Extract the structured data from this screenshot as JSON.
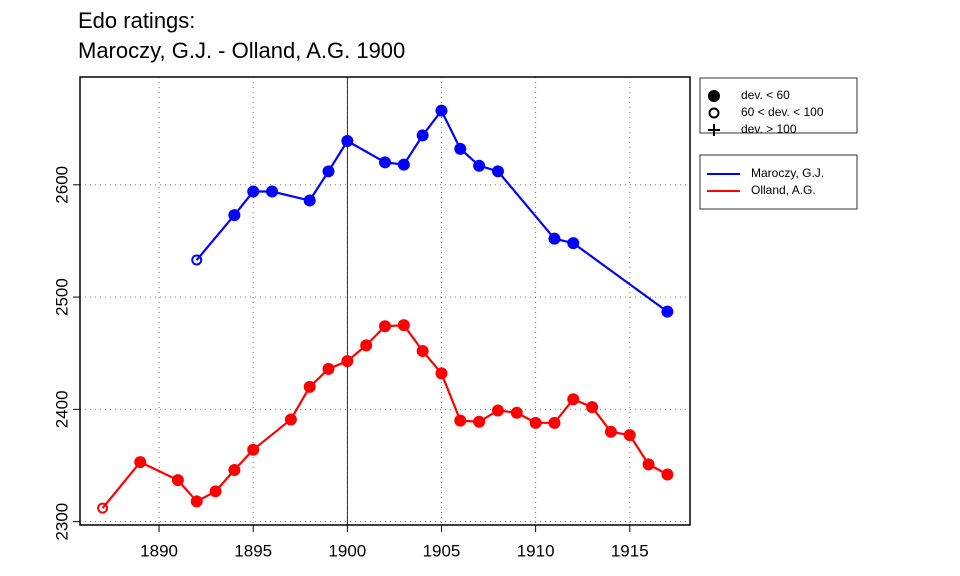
{
  "chart_data": {
    "type": "line",
    "title": "Edo ratings:",
    "subtitle": "Maroczy, G.J. - Olland, A.G. 1900",
    "xlim": [
      1885.8,
      1918.2
    ],
    "ylim": [
      2297,
      2696
    ],
    "xticks": [
      1890,
      1895,
      1900,
      1905,
      1910,
      1915
    ],
    "yticks": [
      2300,
      2400,
      2500,
      2600
    ],
    "grid": true,
    "vline": 1900,
    "point_legend": [
      {
        "label": "dev. < 60",
        "symbol": "filled"
      },
      {
        "label": "60 < dev. < 100",
        "symbol": "open"
      },
      {
        "label": "dev. > 100",
        "symbol": "plus"
      }
    ],
    "series": [
      {
        "name": "Maroczy, G.J.",
        "color": "#0000ff",
        "x": [
          1892,
          1894,
          1895,
          1896,
          1898,
          1899,
          1900,
          1902,
          1903,
          1904,
          1905,
          1906,
          1907,
          1908,
          1911,
          1912,
          1917
        ],
        "values": [
          2533,
          2573,
          2594,
          2594,
          2586,
          2612,
          2639,
          2620,
          2618,
          2644,
          2666,
          2632,
          2617,
          2612,
          2552,
          2548,
          2487
        ],
        "symbols": [
          "open",
          "filled",
          "filled",
          "filled",
          "filled",
          "filled",
          "filled",
          "filled",
          "filled",
          "filled",
          "filled",
          "filled",
          "filled",
          "filled",
          "filled",
          "filled",
          "filled"
        ]
      },
      {
        "name": "Olland, A.G.",
        "color": "#ff0000",
        "x": [
          1887,
          1889,
          1891,
          1892,
          1893,
          1894,
          1895,
          1897,
          1898,
          1899,
          1900,
          1901,
          1902,
          1903,
          1904,
          1905,
          1906,
          1907,
          1908,
          1909,
          1910,
          1911,
          1912,
          1913,
          1914,
          1915,
          1916,
          1917
        ],
        "values": [
          2312,
          2353,
          2337,
          2318,
          2327,
          2346,
          2364,
          2391,
          2420,
          2436,
          2443,
          2457,
          2474,
          2475,
          2452,
          2432,
          2390,
          2389,
          2399,
          2397,
          2388,
          2388,
          2409,
          2402,
          2380,
          2377,
          2351,
          2342
        ],
        "symbols": [
          "open",
          "filled",
          "filled",
          "filled",
          "filled",
          "filled",
          "filled",
          "filled",
          "filled",
          "filled",
          "filled",
          "filled",
          "filled",
          "filled",
          "filled",
          "filled",
          "filled",
          "filled",
          "filled",
          "filled",
          "filled",
          "filled",
          "filled",
          "filled",
          "filled",
          "filled",
          "filled",
          "filled"
        ]
      }
    ]
  }
}
